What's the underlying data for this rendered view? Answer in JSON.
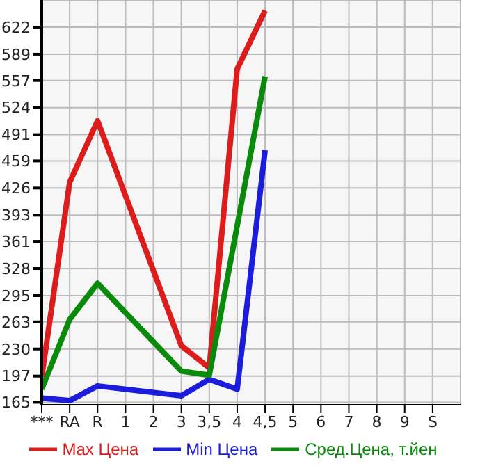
{
  "chart_data": {
    "type": "line",
    "categories": [
      "***",
      "RA",
      "R",
      "1",
      "2",
      "3",
      "3,5",
      "4",
      "4,5",
      "5",
      "6",
      "7",
      "8",
      "9",
      "S"
    ],
    "series": [
      {
        "name": "Max Цена",
        "color": "#dd1c1c",
        "values": [
          196,
          433,
          508,
          null,
          null,
          234,
          207,
          571,
          642,
          null,
          null,
          null,
          null,
          null,
          null
        ]
      },
      {
        "name": "Min Цена",
        "color": "#1c1cdd",
        "values": [
          170,
          167,
          185,
          null,
          null,
          173,
          193,
          181,
          472,
          null,
          null,
          null,
          null,
          null,
          null
        ]
      },
      {
        "name": "Сред.Цена, т.йен",
        "color": "#0a8a0a",
        "values": [
          181,
          266,
          310,
          null,
          null,
          203,
          198,
          null,
          562,
          null,
          null,
          null,
          null,
          null,
          null
        ]
      }
    ],
    "ylim": [
      162,
      655
    ],
    "yticks": [
      165,
      197,
      230,
      263,
      295,
      328,
      361,
      393,
      426,
      459,
      491,
      524,
      557,
      589,
      622
    ],
    "grid": true,
    "legend": "bottom",
    "marker": "none",
    "line_style": "solid"
  }
}
